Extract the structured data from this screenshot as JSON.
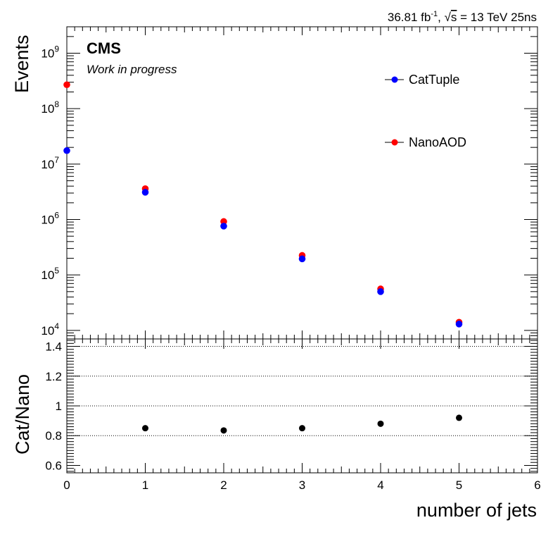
{
  "header": {
    "lumi_prefix": "36.81 fb",
    "lumi_exp": "-1",
    "sqrt_sym": "√",
    "s": "s",
    "energy": " = 13 TeV 25ns"
  },
  "experiment": {
    "name": "CMS",
    "status": "Work in progress"
  },
  "chart_data": [
    {
      "type": "scatter",
      "title": "",
      "xlabel": "number of jets",
      "ylabel": "Events",
      "yscale": "log",
      "xlim": [
        0,
        6
      ],
      "ylim": [
        7000,
        3000000000
      ],
      "x_ticks": [
        "0",
        "1",
        "2",
        "3",
        "4",
        "5",
        "6"
      ],
      "y_ticks": [
        {
          "base": "10",
          "exp": "4"
        },
        {
          "base": "10",
          "exp": "5"
        },
        {
          "base": "10",
          "exp": "6"
        },
        {
          "base": "10",
          "exp": "7"
        },
        {
          "base": "10",
          "exp": "8"
        },
        {
          "base": "10",
          "exp": "9"
        }
      ],
      "legend_position": "top-right",
      "series": [
        {
          "name": "NanoAOD",
          "color": "#ff0000",
          "x": [
            0,
            1,
            2,
            3,
            4,
            5
          ],
          "y": [
            270000000,
            3600000,
            920000,
            225000,
            56000,
            14000
          ]
        },
        {
          "name": "CatTuple",
          "color": "#0000ff",
          "x": [
            0,
            1,
            2,
            3,
            4,
            5
          ],
          "y": [
            17500000,
            3100000,
            760000,
            195000,
            50000,
            13000
          ]
        }
      ]
    },
    {
      "type": "scatter",
      "title": "",
      "xlabel": "number of jets",
      "ylabel": "Cat/Nano",
      "xlim": [
        0,
        6
      ],
      "ylim": [
        0.55,
        1.45
      ],
      "x_ticks": [
        "0",
        "1",
        "2",
        "3",
        "4",
        "5",
        "6"
      ],
      "y_ticks": [
        "0.6",
        "0.8",
        "1",
        "1.2",
        "1.4"
      ],
      "grid_y": [
        0.8,
        1.0,
        1.2,
        1.4
      ],
      "series": [
        {
          "name": "",
          "color": "#000000",
          "x": [
            1,
            2,
            3,
            4,
            5
          ],
          "y": [
            0.85,
            0.835,
            0.85,
            0.88,
            0.92
          ]
        }
      ]
    }
  ]
}
